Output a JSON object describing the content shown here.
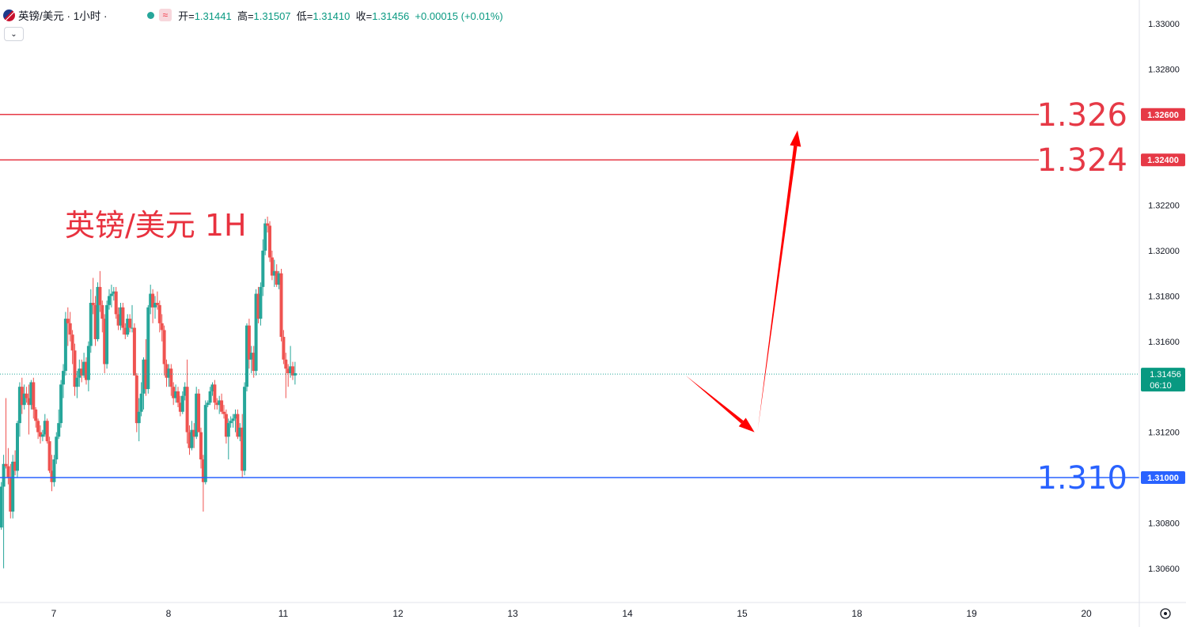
{
  "legend": {
    "symbol": "英镑/美元 · 1小时 ·",
    "status_icon": "wave-icon",
    "open_label": "开=",
    "open": "1.31441",
    "high_label": "高=",
    "high": "1.31507",
    "low_label": "低=",
    "low": "1.31410",
    "close_label": "收=",
    "close": "1.31456",
    "change": "+0.00015 (+0.01%)"
  },
  "colors": {
    "up": "#26a69a",
    "down": "#ef5350",
    "resistance": "#e63946",
    "support": "#2962ff",
    "arrow": "#ff0000",
    "annotation": "#e8323f"
  },
  "chart_data": {
    "type": "candlestick",
    "title": "英镑/美元 1H",
    "ylim": [
      1.305,
      1.331
    ],
    "y_ticks": [
      1.306,
      1.308,
      1.31,
      1.312,
      1.314,
      1.316,
      1.318,
      1.32,
      1.322,
      1.324,
      1.326,
      1.328,
      1.33
    ],
    "y_tick_labels": [
      "1.30600",
      "1.30800",
      "1.31000",
      "1.31200",
      "1.31400",
      "1.31600",
      "1.31800",
      "1.32000",
      "1.32200",
      "1.32400",
      "1.32600",
      "1.32800",
      "1.33000"
    ],
    "x_ticks": [
      "7",
      "8",
      "11",
      "12",
      "13",
      "14",
      "15",
      "18",
      "19",
      "20"
    ],
    "x_tick_values": [
      0,
      20,
      40,
      60,
      80,
      100,
      120,
      140,
      160,
      180
    ],
    "last_price": "1.31456",
    "countdown": "06:10",
    "levels": [
      {
        "value": 1.326,
        "label": "1.326",
        "tag": "1.32600",
        "kind": "resistance"
      },
      {
        "value": 1.324,
        "label": "1.324",
        "tag": "1.32400",
        "kind": "resistance"
      },
      {
        "value": 1.31,
        "label": "1.310",
        "tag": "1.31000",
        "kind": "support"
      }
    ],
    "projection": [
      {
        "x": 112.5,
        "y": 1.3145
      },
      {
        "x": 124.5,
        "y": 1.312
      },
      {
        "x": 132.0,
        "y": 1.3253
      }
    ],
    "candles": [
      [
        -9.2,
        1.3062,
        1.3065,
        1.3058,
        1.306
      ],
      [
        -8.8,
        1.306,
        1.3063,
        1.3055,
        1.3057
      ],
      [
        -8.4,
        1.3058,
        1.3071,
        1.3056,
        1.3069
      ],
      [
        -8.0,
        1.3069,
        1.3087,
        1.306,
        1.3085
      ],
      [
        -7.6,
        1.3085,
        1.309,
        1.308,
        1.3083
      ],
      [
        -7.2,
        1.3083,
        1.3086,
        1.3075,
        1.3078
      ],
      [
        -6.8,
        1.3078,
        1.3098,
        1.3077,
        1.3096
      ],
      [
        -6.4,
        1.3096,
        1.311,
        1.306,
        1.3106
      ],
      [
        -6.0,
        1.3106,
        1.3135,
        1.3104,
        1.3105
      ],
      [
        -5.6,
        1.3105,
        1.3113,
        1.3097,
        1.31
      ],
      [
        -5.2,
        1.31,
        1.3106,
        1.3082,
        1.3085
      ],
      [
        -4.8,
        1.3085,
        1.311,
        1.3082,
        1.3107
      ],
      [
        -4.4,
        1.3107,
        1.3112,
        1.3101,
        1.3103
      ],
      [
        -4.0,
        1.3103,
        1.3125,
        1.31,
        1.3124
      ],
      [
        -3.6,
        1.3124,
        1.3142,
        1.3118,
        1.314
      ],
      [
        -3.2,
        1.314,
        1.3144,
        1.3128,
        1.3132
      ],
      [
        -2.8,
        1.3132,
        1.3141,
        1.313,
        1.3137
      ],
      [
        -2.4,
        1.3137,
        1.314,
        1.3133,
        1.3135
      ],
      [
        -2.0,
        1.3135,
        1.3141,
        1.3119,
        1.3132
      ],
      [
        -1.6,
        1.3132,
        1.3143,
        1.313,
        1.3142
      ],
      [
        -1.2,
        1.3142,
        1.3144,
        1.3126,
        1.313
      ],
      [
        -0.8,
        1.313,
        1.3131,
        1.3122,
        1.3125
      ],
      [
        -0.4,
        1.3125,
        1.3126,
        1.3117,
        1.312
      ],
      [
        0.0,
        1.312,
        1.3123,
        1.3115,
        1.3118
      ],
      [
        0.4,
        1.3118,
        1.3121,
        1.3116,
        1.3119
      ],
      [
        0.8,
        1.3119,
        1.3128,
        1.3118,
        1.3125
      ],
      [
        1.2,
        1.3125,
        1.3126,
        1.3115,
        1.3116
      ],
      [
        1.6,
        1.3116,
        1.3118,
        1.3102,
        1.3103
      ],
      [
        2.0,
        1.3103,
        1.311,
        1.3094,
        1.3098
      ],
      [
        2.4,
        1.3098,
        1.311,
        1.3096,
        1.3108
      ],
      [
        2.8,
        1.3108,
        1.312,
        1.3106,
        1.3118
      ],
      [
        3.2,
        1.3118,
        1.313,
        1.3117,
        1.3124
      ],
      [
        3.6,
        1.3124,
        1.3143,
        1.3122,
        1.3141
      ],
      [
        4.0,
        1.3141,
        1.315,
        1.3135,
        1.3147
      ],
      [
        4.4,
        1.3147,
        1.3173,
        1.3145,
        1.317
      ],
      [
        4.8,
        1.317,
        1.3175,
        1.3158,
        1.3168
      ],
      [
        5.2,
        1.3168,
        1.3173,
        1.316,
        1.3163
      ],
      [
        5.6,
        1.3163,
        1.3165,
        1.315,
        1.3156
      ],
      [
        6.0,
        1.3156,
        1.3159,
        1.3136,
        1.314
      ],
      [
        6.4,
        1.314,
        1.3147,
        1.3135,
        1.3144
      ],
      [
        6.8,
        1.3144,
        1.3152,
        1.314,
        1.3148
      ],
      [
        7.2,
        1.3148,
        1.3152,
        1.3142,
        1.3145
      ],
      [
        7.6,
        1.3145,
        1.3155,
        1.3144,
        1.3151
      ],
      [
        8.0,
        1.3151,
        1.3153,
        1.3141,
        1.3143
      ],
      [
        8.4,
        1.3143,
        1.316,
        1.3138,
        1.3158
      ],
      [
        8.8,
        1.3158,
        1.3183,
        1.3155,
        1.3177
      ],
      [
        9.2,
        1.3177,
        1.3188,
        1.3172,
        1.3176
      ],
      [
        9.6,
        1.3176,
        1.318,
        1.3158,
        1.3161
      ],
      [
        10.0,
        1.3161,
        1.3186,
        1.316,
        1.3184
      ],
      [
        10.4,
        1.3184,
        1.3191,
        1.3173,
        1.3176
      ],
      [
        10.8,
        1.3176,
        1.3178,
        1.3164,
        1.317
      ],
      [
        11.2,
        1.317,
        1.3172,
        1.3146,
        1.315
      ],
      [
        11.6,
        1.315,
        1.3178,
        1.3148,
        1.3176
      ],
      [
        12.0,
        1.3176,
        1.3183,
        1.3174,
        1.318
      ],
      [
        12.4,
        1.318,
        1.3185,
        1.3175,
        1.3181
      ],
      [
        12.8,
        1.3181,
        1.3184,
        1.3178,
        1.3182
      ],
      [
        13.2,
        1.3182,
        1.3184,
        1.317,
        1.3172
      ],
      [
        13.6,
        1.3172,
        1.3175,
        1.3165,
        1.3167
      ],
      [
        14.0,
        1.3167,
        1.3177,
        1.3165,
        1.3175
      ],
      [
        14.4,
        1.3175,
        1.3177,
        1.3163,
        1.3166
      ],
      [
        14.8,
        1.3166,
        1.3168,
        1.3161,
        1.3163
      ],
      [
        15.2,
        1.3163,
        1.3172,
        1.3162,
        1.317
      ],
      [
        15.6,
        1.317,
        1.3172,
        1.3164,
        1.3166
      ],
      [
        16.0,
        1.3166,
        1.3176,
        1.3164,
        1.3166
      ],
      [
        16.4,
        1.3166,
        1.3168,
        1.3145,
        1.3145
      ],
      [
        16.8,
        1.3145,
        1.3146,
        1.312,
        1.3124
      ],
      [
        17.2,
        1.3124,
        1.3135,
        1.3116,
        1.3129
      ],
      [
        17.6,
        1.3129,
        1.3142,
        1.3127,
        1.3137
      ],
      [
        18.0,
        1.3137,
        1.3153,
        1.313,
        1.3152
      ],
      [
        18.4,
        1.3152,
        1.3161,
        1.3136,
        1.3139
      ],
      [
        18.8,
        1.3139,
        1.3176,
        1.3137,
        1.3175
      ],
      [
        19.2,
        1.3175,
        1.3185,
        1.3172,
        1.3181
      ],
      [
        19.6,
        1.3181,
        1.3183,
        1.3168,
        1.3175
      ],
      [
        20.0,
        1.3175,
        1.318,
        1.317,
        1.3177
      ],
      [
        20.4,
        1.3177,
        1.3182,
        1.3174,
        1.3176
      ],
      [
        20.8,
        1.3176,
        1.3178,
        1.3164,
        1.3168
      ],
      [
        21.2,
        1.3168,
        1.3172,
        1.316,
        1.3165
      ],
      [
        21.6,
        1.3165,
        1.3167,
        1.3145,
        1.315
      ],
      [
        22.0,
        1.315,
        1.3152,
        1.314,
        1.3144
      ],
      [
        22.4,
        1.3144,
        1.315,
        1.314,
        1.3148
      ],
      [
        22.8,
        1.3148,
        1.315,
        1.3136,
        1.314
      ],
      [
        23.2,
        1.314,
        1.3142,
        1.3132,
        1.3135
      ],
      [
        23.6,
        1.3135,
        1.3141,
        1.3133,
        1.3138
      ],
      [
        24.0,
        1.3138,
        1.314,
        1.3131,
        1.3133
      ],
      [
        24.4,
        1.3133,
        1.3136,
        1.3127,
        1.3129
      ],
      [
        24.8,
        1.3129,
        1.3138,
        1.3128,
        1.3136
      ],
      [
        25.2,
        1.3136,
        1.3142,
        1.3134,
        1.314
      ],
      [
        25.6,
        1.314,
        1.3152,
        1.3115,
        1.312
      ],
      [
        26.0,
        1.312,
        1.3123,
        1.311,
        1.3113
      ],
      [
        26.4,
        1.3113,
        1.3125,
        1.3112,
        1.3121
      ],
      [
        26.8,
        1.3121,
        1.3124,
        1.3113,
        1.3118
      ],
      [
        27.2,
        1.3118,
        1.314,
        1.3117,
        1.3137
      ],
      [
        27.6,
        1.3137,
        1.3139,
        1.312,
        1.312
      ],
      [
        28.0,
        1.312,
        1.3122,
        1.3104,
        1.3108
      ],
      [
        28.4,
        1.3108,
        1.311,
        1.3085,
        1.3098
      ],
      [
        28.8,
        1.3098,
        1.3134,
        1.3097,
        1.3132
      ],
      [
        29.2,
        1.3132,
        1.3134,
        1.3131,
        1.3133
      ],
      [
        29.6,
        1.3133,
        1.314,
        1.3132,
        1.3138
      ],
      [
        30.0,
        1.3138,
        1.3142,
        1.3136,
        1.3141
      ],
      [
        30.4,
        1.3141,
        1.3143,
        1.313,
        1.3133
      ],
      [
        30.8,
        1.3133,
        1.3135,
        1.313,
        1.3132
      ],
      [
        31.2,
        1.3132,
        1.3136,
        1.3128,
        1.3134
      ],
      [
        31.6,
        1.3134,
        1.3137,
        1.3128,
        1.3129
      ],
      [
        32.0,
        1.3129,
        1.3132,
        1.3126,
        1.3128
      ],
      [
        32.4,
        1.3128,
        1.313,
        1.3115,
        1.3118
      ],
      [
        32.8,
        1.3118,
        1.3126,
        1.3108,
        1.3124
      ],
      [
        33.2,
        1.3124,
        1.3127,
        1.3122,
        1.3125
      ],
      [
        33.6,
        1.3125,
        1.3128,
        1.3122,
        1.3126
      ],
      [
        34.0,
        1.3126,
        1.313,
        1.312,
        1.3128
      ],
      [
        34.4,
        1.3128,
        1.313,
        1.3117,
        1.3118
      ],
      [
        34.8,
        1.3118,
        1.3124,
        1.3116,
        1.3122
      ],
      [
        35.2,
        1.3122,
        1.3128,
        1.31,
        1.3103
      ],
      [
        35.6,
        1.3103,
        1.3142,
        1.3101,
        1.314
      ],
      [
        36.0,
        1.314,
        1.3168,
        1.3138,
        1.3167
      ],
      [
        36.4,
        1.3167,
        1.317,
        1.3148,
        1.3152
      ],
      [
        36.8,
        1.3152,
        1.3158,
        1.3146,
        1.3155
      ],
      [
        37.2,
        1.3155,
        1.3158,
        1.3144,
        1.3147
      ],
      [
        37.6,
        1.3147,
        1.3183,
        1.3145,
        1.3181
      ],
      [
        38.0,
        1.3181,
        1.3184,
        1.3168,
        1.317
      ],
      [
        38.4,
        1.317,
        1.3186,
        1.3167,
        1.3184
      ],
      [
        38.8,
        1.3184,
        1.3205,
        1.318,
        1.32
      ],
      [
        39.2,
        1.32,
        1.3214,
        1.3198,
        1.3212
      ],
      [
        39.6,
        1.3212,
        1.3215,
        1.3208,
        1.3211
      ],
      [
        40.0,
        1.3211,
        1.3213,
        1.3195,
        1.3197
      ],
      [
        40.4,
        1.3197,
        1.32,
        1.3187,
        1.3189
      ],
      [
        40.8,
        1.3189,
        1.3196,
        1.3184,
        1.3191
      ],
      [
        41.2,
        1.3191,
        1.3194,
        1.3184,
        1.3185
      ],
      [
        41.6,
        1.3185,
        1.3191,
        1.3183,
        1.319
      ],
      [
        42.0,
        1.319,
        1.3192,
        1.316,
        1.3162
      ],
      [
        42.4,
        1.3162,
        1.3165,
        1.315,
        1.3152
      ],
      [
        42.8,
        1.3152,
        1.3155,
        1.3135,
        1.3148
      ],
      [
        43.2,
        1.3148,
        1.315,
        1.314,
        1.3146
      ],
      [
        43.6,
        1.3146,
        1.3158,
        1.3144,
        1.3149
      ],
      [
        44.0,
        1.3149,
        1.3151,
        1.3143,
        1.3145
      ],
      [
        44.4,
        1.3145,
        1.3151,
        1.3141,
        1.3146
      ]
    ]
  }
}
